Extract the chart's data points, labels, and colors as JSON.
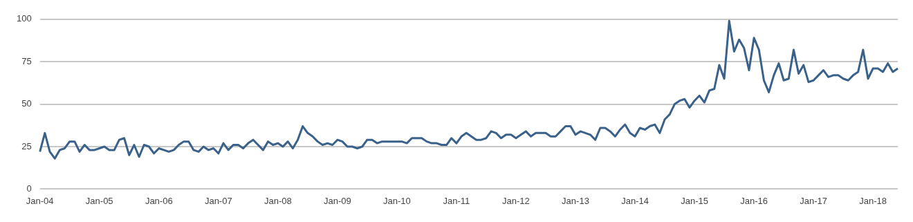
{
  "chart_data": {
    "type": "line",
    "categories": [
      "Jan-04",
      null,
      null,
      null,
      null,
      null,
      null,
      null,
      null,
      null,
      null,
      null,
      "Jan-05",
      null,
      null,
      null,
      null,
      null,
      null,
      null,
      null,
      null,
      null,
      null,
      "Jan-06",
      null,
      null,
      null,
      null,
      null,
      null,
      null,
      null,
      null,
      null,
      null,
      "Jan-07",
      null,
      null,
      null,
      null,
      null,
      null,
      null,
      null,
      null,
      null,
      null,
      "Jan-08",
      null,
      null,
      null,
      null,
      null,
      null,
      null,
      null,
      null,
      null,
      null,
      "Jan-09",
      null,
      null,
      null,
      null,
      null,
      null,
      null,
      null,
      null,
      null,
      null,
      "Jan-10",
      null,
      null,
      null,
      null,
      null,
      null,
      null,
      null,
      null,
      null,
      null,
      "Jan-11",
      null,
      null,
      null,
      null,
      null,
      null,
      null,
      null,
      null,
      null,
      null,
      "Jan-12",
      null,
      null,
      null,
      null,
      null,
      null,
      null,
      null,
      null,
      null,
      null,
      "Jan-13",
      null,
      null,
      null,
      null,
      null,
      null,
      null,
      null,
      null,
      null,
      null,
      "Jan-14",
      null,
      null,
      null,
      null,
      null,
      null,
      null,
      null,
      null,
      null,
      null,
      "Jan-15",
      null,
      null,
      null,
      null,
      null,
      null,
      null,
      null,
      null,
      null,
      null,
      "Jan-16",
      null,
      null,
      null,
      null,
      null,
      null,
      null,
      null,
      null,
      null,
      null,
      "Jan-17",
      null,
      null,
      null,
      null,
      null,
      null,
      null,
      null,
      null,
      null,
      null,
      "Jan-18",
      null,
      null,
      null,
      null,
      null
    ],
    "series": [
      {
        "color": "#3a6189",
        "values": [
          22,
          33,
          22,
          18,
          23,
          24,
          28,
          28,
          22,
          26,
          23,
          23,
          24,
          25,
          23,
          23,
          29,
          30,
          20,
          26,
          19,
          26,
          25,
          21,
          24,
          23,
          22,
          23,
          26,
          28,
          28,
          23,
          22,
          25,
          23,
          24,
          21,
          27,
          23,
          26,
          26,
          24,
          27,
          29,
          26,
          23,
          28,
          26,
          27,
          25,
          28,
          24,
          29,
          37,
          33,
          31,
          28,
          26,
          27,
          26,
          29,
          28,
          25,
          25,
          24,
          25,
          29,
          29,
          27,
          28,
          28,
          28,
          28,
          28,
          27,
          30,
          30,
          30,
          28,
          27,
          27,
          26,
          26,
          30,
          27,
          31,
          33,
          31,
          29,
          29,
          30,
          34,
          33,
          30,
          32,
          32,
          30,
          32,
          34,
          31,
          33,
          33,
          33,
          31,
          31,
          34,
          37,
          37,
          32,
          34,
          33,
          32,
          29,
          36,
          36,
          34,
          31,
          35,
          38,
          33,
          31,
          36,
          35,
          37,
          38,
          33,
          41,
          44,
          50,
          52,
          53,
          48,
          52,
          55,
          51,
          58,
          59,
          73,
          65,
          99,
          81,
          88,
          83,
          70,
          89,
          82,
          64,
          57,
          67,
          74,
          64,
          65,
          82,
          68,
          73,
          63,
          64,
          67,
          70,
          66,
          67,
          67,
          65,
          64,
          67,
          69,
          82,
          65,
          71,
          71,
          69,
          74,
          69,
          71
        ]
      }
    ],
    "ylim": [
      0,
      100
    ],
    "yticks": [
      0,
      25,
      50,
      75,
      100
    ],
    "grid": "y",
    "legend": false,
    "marker": "none",
    "line_style": "solid"
  }
}
